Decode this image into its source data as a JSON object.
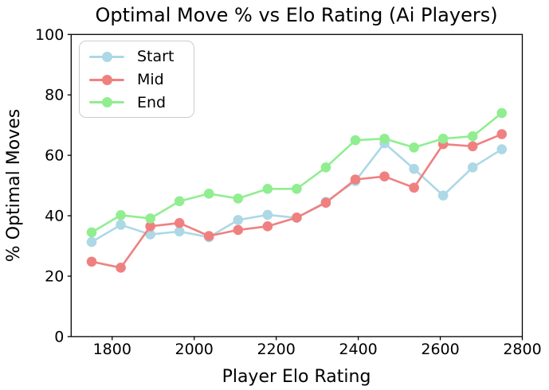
{
  "chart_data": {
    "type": "line",
    "title": "Optimal Move % vs Elo Rating (Ai Players)",
    "xlabel": "Player Elo Rating",
    "ylabel": "% Optimal Moves",
    "xlim": [
      1700,
      2800
    ],
    "ylim": [
      0,
      100
    ],
    "xticks": [
      1800,
      2000,
      2200,
      2400,
      2600,
      2800
    ],
    "yticks": [
      0,
      20,
      40,
      60,
      80,
      100
    ],
    "grid": false,
    "legend_position": "upper left",
    "x": [
      1750,
      1821,
      1893,
      1964,
      2036,
      2107,
      2179,
      2250,
      2321,
      2393,
      2464,
      2536,
      2607,
      2679,
      2750
    ],
    "series": [
      {
        "name": "Start",
        "color": "#ADD8E6",
        "values": [
          31.3,
          37.0,
          33.8,
          34.8,
          32.9,
          38.6,
          40.3,
          39.3,
          44.6,
          51.5,
          64.0,
          55.5,
          46.7,
          56.0,
          62.0
        ]
      },
      {
        "name": "Mid",
        "color": "#F08080",
        "values": [
          24.8,
          22.8,
          36.5,
          37.6,
          33.3,
          35.3,
          36.5,
          39.4,
          44.3,
          52.0,
          53.0,
          49.3,
          63.7,
          63.0,
          67.0
        ]
      },
      {
        "name": "End",
        "color": "#90EE90",
        "values": [
          34.5,
          40.2,
          39.1,
          44.8,
          47.3,
          45.7,
          48.9,
          48.9,
          56.0,
          65.0,
          65.5,
          62.6,
          65.5,
          66.3,
          74.0
        ]
      }
    ]
  }
}
